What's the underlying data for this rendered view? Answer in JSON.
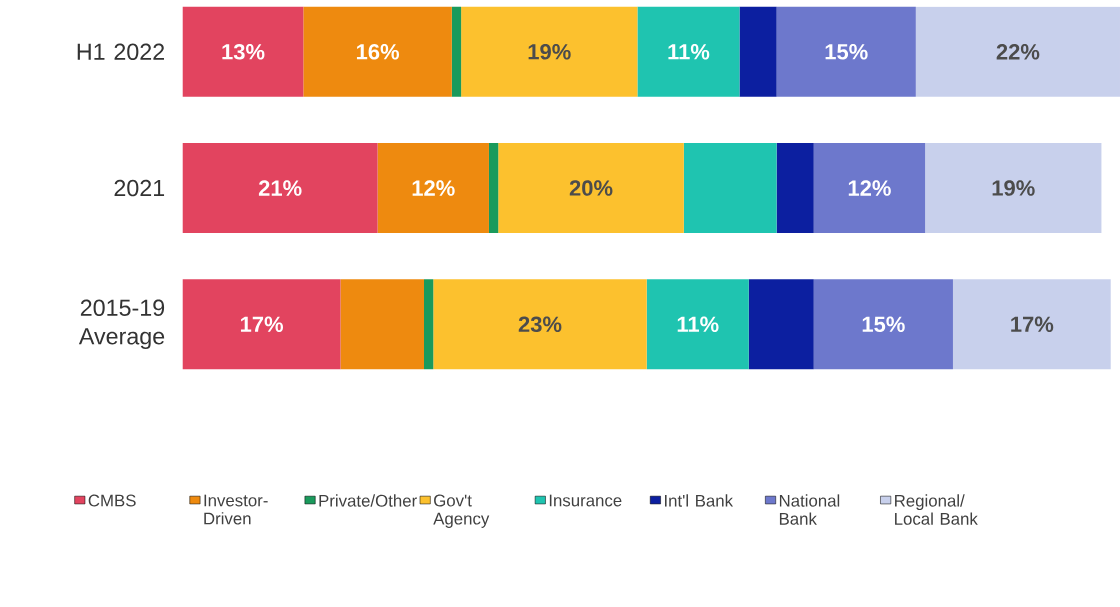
{
  "chart_data": {
    "type": "bar",
    "orientation": "horizontal",
    "stacked": true,
    "legend": "bottom",
    "categories": [
      "H1 2022",
      "2021",
      "2015-19 Average"
    ],
    "series": [
      {
        "name": "CMBS",
        "color": "#e2445f",
        "values": [
          13,
          21,
          17
        ],
        "value_labels": [
          "13%",
          "21%",
          "17%"
        ]
      },
      {
        "name": "Investor-Driven",
        "color": "#ee8a0f",
        "values": [
          16,
          12,
          9
        ],
        "value_labels": [
          "16%",
          "12%",
          null
        ]
      },
      {
        "name": "Private/Other",
        "color": "#1a9a5c",
        "values": [
          1,
          1,
          1
        ]
      },
      {
        "name": "Gov't Agency",
        "color": "#fcc12e",
        "values": [
          19,
          20,
          23
        ],
        "value_labels": [
          "19%",
          "20%",
          "23%"
        ]
      },
      {
        "name": "Insurance",
        "color": "#1fc4b0",
        "values": [
          11,
          10,
          11
        ],
        "value_labels": [
          "11%",
          null,
          "11%"
        ]
      },
      {
        "name": "Int'l Bank",
        "color": "#0c1fa0",
        "values": [
          4,
          4,
          7
        ]
      },
      {
        "name": "National Bank",
        "color": "#6d78cc",
        "values": [
          15,
          12,
          15
        ],
        "value_labels": [
          "15%",
          "12%",
          "15%"
        ]
      },
      {
        "name": "Regional/ Local Bank",
        "color": "#c8d0ec",
        "values": [
          22,
          19,
          17
        ],
        "value_labels": [
          "22%",
          "19%",
          "17%"
        ]
      }
    ]
  }
}
